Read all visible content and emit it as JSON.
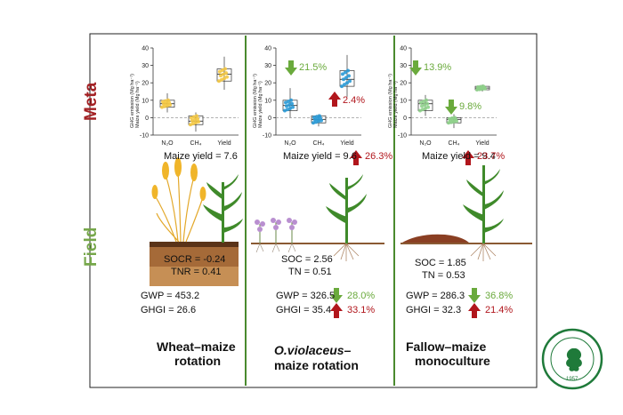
{
  "section_labels": {
    "meta": "Meta",
    "field": "Field"
  },
  "axis_label_line1": "GHG emission (Mg ha⁻¹)",
  "axis_label_line2": "Maize yield (Mg ha⁻¹)",
  "y_ticks": [
    "40",
    "30",
    "20",
    "10",
    "0",
    "-10"
  ],
  "categories": [
    "N₂O",
    "CH₄",
    "Yield"
  ],
  "panels": [
    {
      "maize_yield": "Maize yield = 7.6",
      "soil_label_1": "SOCR = -0.24",
      "soil_label_2": "TNR = 0.41",
      "gwp": "GWP = 453.2",
      "ghgi": "GHGI = 26.6",
      "title_line1": "Wheat–maize",
      "title_line2": "rotation"
    },
    {
      "meta_n2o_change": "21.5%",
      "meta_ch4_change": "2.4%",
      "maize_yield": "Maize yield = 9.6",
      "yield_change": "26.3%",
      "soil_label_1": "SOC = 2.56",
      "soil_label_2": "TN = 0.51",
      "gwp": "GWP = 326.5",
      "gwp_change": "28.0%",
      "ghgi": "GHGI = 35.4",
      "ghgi_change": "33.1%",
      "title_line1": "O.violaceus–",
      "title_line2": "maize rotation"
    },
    {
      "meta_n2o_change": "13.9%",
      "meta_yield_change": "9.8%",
      "maize_yield": "Maize yield = 9.4",
      "yield_change": "23.7%",
      "soil_label_1": "SOC = 1.85",
      "soil_label_2": "TN = 0.53",
      "gwp": "GWP = 286.3",
      "gwp_change": "36.8%",
      "ghgi": "GHGI = 32.3",
      "ghgi_change": "21.4%",
      "title_line1": "Fallow–maize",
      "title_line2": "monoculture"
    }
  ],
  "logo": {
    "text": "中国农业科学院棉花研究所 INSTITUTE OF COTTON RESEARCH OF CAAS",
    "year": "1957"
  },
  "colors": {
    "section_meta": "#a32124",
    "section_field": "#76a74a",
    "panel_border": "#222222",
    "divider": "#4a8a2e",
    "decrease_arrow": "#6aaa3c",
    "increase_arrow": "#b1161c",
    "panel1_points": "#f4c842",
    "panel2_points": "#2a9ad6",
    "panel3_points": "#8ed08a"
  }
}
